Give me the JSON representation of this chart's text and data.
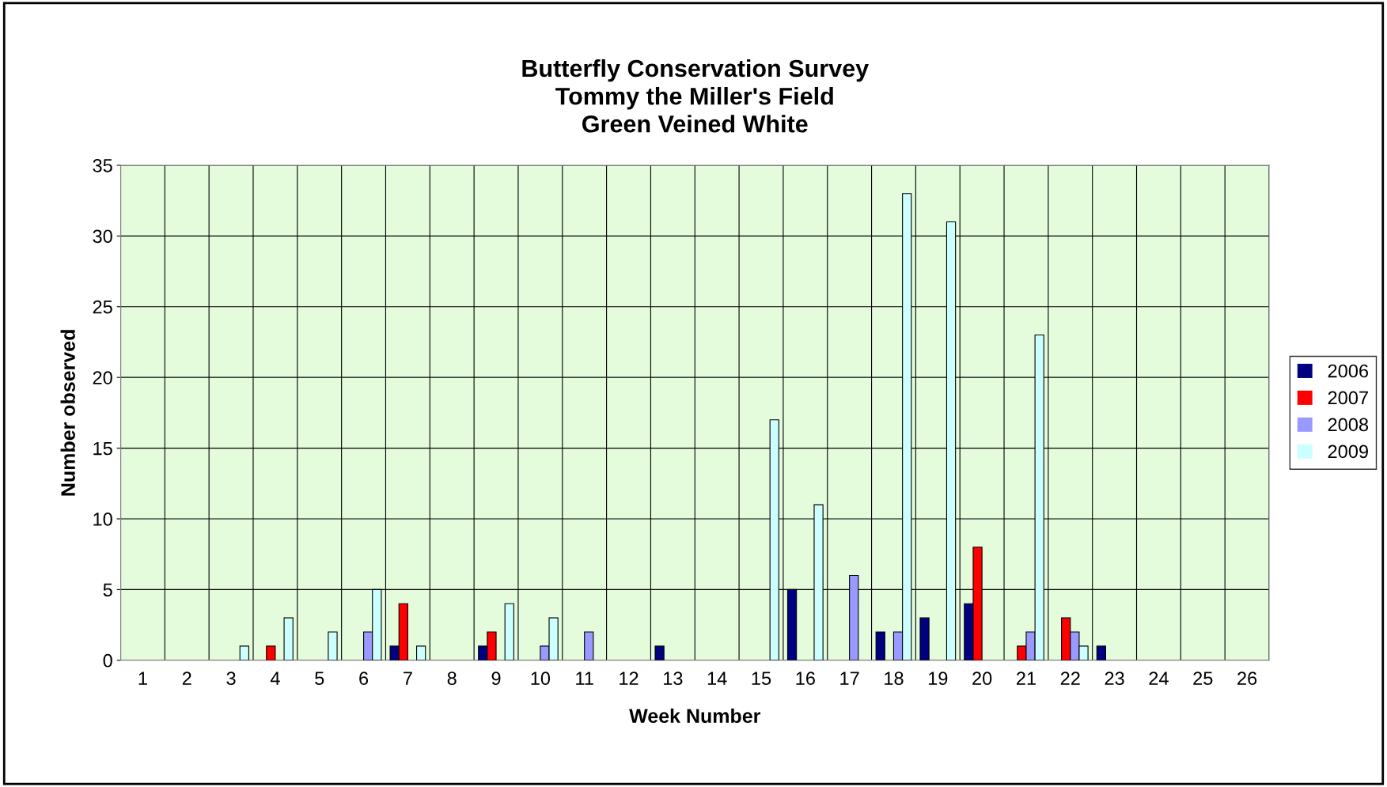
{
  "chart_data": {
    "type": "bar",
    "title": "Butterfly Conservation Survey\nTommy the Miller's Field\nGreen Veined White",
    "xlabel": "Week Number",
    "ylabel": "Number observed",
    "categories": [
      "1",
      "2",
      "3",
      "4",
      "5",
      "6",
      "7",
      "8",
      "9",
      "10",
      "11",
      "12",
      "13",
      "14",
      "15",
      "16",
      "17",
      "18",
      "19",
      "20",
      "21",
      "22",
      "23",
      "24",
      "25",
      "26"
    ],
    "series": [
      {
        "name": "2006",
        "color": "#000080",
        "values": [
          0,
          0,
          0,
          0,
          0,
          0,
          1,
          0,
          1,
          0,
          0,
          0,
          1,
          0,
          0,
          5,
          0,
          2,
          3,
          4,
          0,
          0,
          1,
          0,
          0,
          0
        ]
      },
      {
        "name": "2007",
        "color": "#ff0000",
        "values": [
          0,
          0,
          0,
          1,
          0,
          0,
          4,
          0,
          2,
          0,
          0,
          0,
          0,
          0,
          0,
          0,
          0,
          0,
          0,
          8,
          1,
          3,
          0,
          0,
          0,
          0
        ]
      },
      {
        "name": "2008",
        "color": "#9999ff",
        "values": [
          0,
          0,
          0,
          0,
          0,
          2,
          0,
          0,
          0,
          1,
          2,
          0,
          0,
          0,
          0,
          0,
          6,
          2,
          0,
          0,
          2,
          2,
          0,
          0,
          0,
          0
        ]
      },
      {
        "name": "2009",
        "color": "#ccffff",
        "values": [
          0,
          0,
          1,
          3,
          2,
          5,
          1,
          0,
          4,
          3,
          0,
          0,
          0,
          0,
          17,
          11,
          0,
          33,
          31,
          0,
          23,
          1,
          0,
          0,
          0,
          0
        ]
      }
    ],
    "ylim": [
      0,
      35
    ],
    "yticks": [
      0,
      5,
      10,
      15,
      20,
      25,
      30,
      35
    ],
    "grid": true,
    "legend": "right"
  }
}
